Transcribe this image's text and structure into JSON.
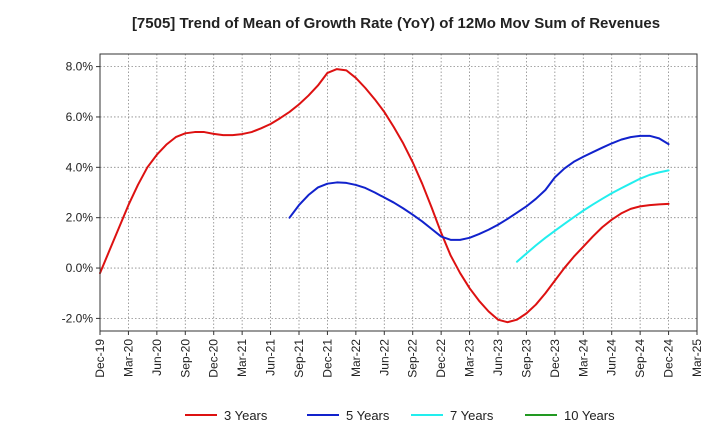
{
  "chart_data": {
    "type": "line",
    "title": "[7505]  Trend of Mean of Growth Rate (YoY) of 12Mo Mov Sum of Revenues",
    "xlabel": "",
    "ylabel": "",
    "x_ticks": [
      "Dec-19",
      "Mar-20",
      "Jun-20",
      "Sep-20",
      "Dec-20",
      "Mar-21",
      "Jun-21",
      "Sep-21",
      "Dec-21",
      "Mar-22",
      "Jun-22",
      "Sep-22",
      "Dec-22",
      "Mar-23",
      "Jun-23",
      "Sep-23",
      "Dec-23",
      "Mar-24",
      "Jun-24",
      "Sep-24",
      "Dec-24",
      "Mar-25"
    ],
    "y_ticks": [
      "8.0%",
      "6.0%",
      "4.0%",
      "2.0%",
      "0.0%",
      "-2.0%"
    ],
    "y_tick_values": [
      8,
      6,
      4,
      2,
      0,
      -2
    ],
    "ylim": [
      -2.5,
      8.5
    ],
    "x_range_months": [
      0,
      63
    ],
    "grid": true,
    "legend_position": "bottom",
    "series": [
      {
        "name": "3 Years",
        "color": "#dd1111",
        "months": [
          0,
          1,
          2,
          3,
          4,
          5,
          6,
          7,
          8,
          9,
          10,
          11,
          12,
          13,
          14,
          15,
          16,
          17,
          18,
          19,
          20,
          21,
          22,
          23,
          24,
          25,
          26,
          27,
          28,
          29,
          30,
          31,
          32,
          33,
          34,
          35,
          36,
          37,
          38,
          39,
          40,
          41,
          42,
          43,
          44,
          45,
          46,
          47,
          48,
          49,
          50,
          51,
          52,
          53,
          54,
          55,
          56,
          57,
          58,
          59,
          60
        ],
        "values": [
          -0.2,
          0.7,
          1.6,
          2.5,
          3.3,
          4.0,
          4.5,
          4.9,
          5.2,
          5.35,
          5.4,
          5.4,
          5.33,
          5.28,
          5.28,
          5.32,
          5.4,
          5.55,
          5.72,
          5.95,
          6.2,
          6.5,
          6.85,
          7.25,
          7.75,
          7.9,
          7.85,
          7.55,
          7.15,
          6.7,
          6.2,
          5.6,
          4.95,
          4.2,
          3.35,
          2.4,
          1.4,
          0.5,
          -0.2,
          -0.8,
          -1.3,
          -1.72,
          -2.05,
          -2.15,
          -2.05,
          -1.8,
          -1.45,
          -1.0,
          -0.5,
          0.0,
          0.45,
          0.85,
          1.25,
          1.62,
          1.92,
          2.17,
          2.35,
          2.45,
          2.5,
          2.53,
          2.55
        ]
      },
      {
        "name": "5 Years",
        "color": "#1122cc",
        "months": [
          20,
          21,
          22,
          23,
          24,
          25,
          26,
          27,
          28,
          29,
          30,
          31,
          32,
          33,
          34,
          35,
          36,
          37,
          38,
          39,
          40,
          41,
          42,
          43,
          44,
          45,
          46,
          47,
          48,
          49,
          50,
          51,
          52,
          53,
          54,
          55,
          56,
          57,
          58,
          59,
          60
        ],
        "values": [
          2.0,
          2.5,
          2.9,
          3.2,
          3.35,
          3.4,
          3.38,
          3.3,
          3.18,
          3.0,
          2.8,
          2.6,
          2.37,
          2.12,
          1.85,
          1.55,
          1.25,
          1.12,
          1.12,
          1.2,
          1.35,
          1.52,
          1.72,
          1.95,
          2.2,
          2.45,
          2.75,
          3.1,
          3.6,
          3.95,
          4.22,
          4.42,
          4.6,
          4.78,
          4.95,
          5.1,
          5.2,
          5.25,
          5.25,
          5.15,
          4.92
        ]
      },
      {
        "name": "7 Years",
        "color": "#22eeee",
        "months": [
          44,
          45,
          46,
          47,
          48,
          49,
          50,
          51,
          52,
          53,
          54,
          55,
          56,
          57,
          58,
          59,
          60
        ],
        "values": [
          0.25,
          0.58,
          0.9,
          1.2,
          1.48,
          1.75,
          2.02,
          2.28,
          2.52,
          2.75,
          2.97,
          3.17,
          3.36,
          3.55,
          3.7,
          3.8,
          3.88
        ]
      },
      {
        "name": "10 Years",
        "color": "#229922",
        "months": [],
        "values": []
      }
    ]
  }
}
